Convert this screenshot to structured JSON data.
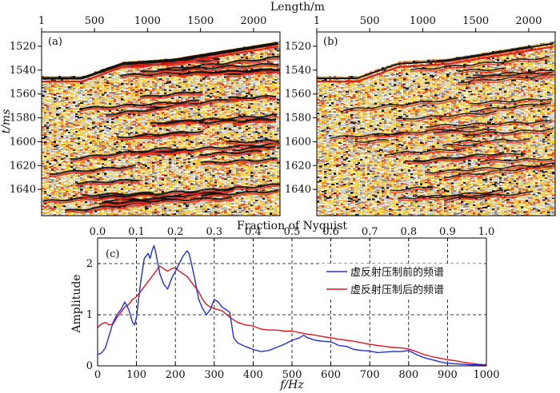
{
  "seismic_panels": {
    "x_axis_title": "Length/m",
    "x_ticks": [
      "1",
      "500",
      "1000",
      "1500",
      "2000"
    ],
    "y_axis_title": "t/ms",
    "y_ticks": [
      "1520",
      "1540",
      "1560",
      "1580",
      "1600",
      "1620",
      "1640"
    ],
    "panel_a_tag": "(a)",
    "panel_b_tag": "(b)"
  },
  "chart_data": {
    "type": "line",
    "panel_tag": "(c)",
    "title": "",
    "xlabel": "f/Hz",
    "ylabel": "Amplitude",
    "top_axis_title": "Fraction of Nyquist",
    "xlim": [
      0,
      1000
    ],
    "ylim": [
      0,
      2.5
    ],
    "x_ticks": [
      "0",
      "100",
      "200",
      "300",
      "400",
      "500",
      "600",
      "700",
      "800",
      "900",
      "1000"
    ],
    "y_ticks": [
      "0",
      "1",
      "2"
    ],
    "top_ticks": [
      "0.0",
      "0.1",
      "0.2",
      "0.3",
      "0.4",
      "0.5",
      "0.6",
      "0.7",
      "0.8",
      "0.9",
      "1.0"
    ],
    "grid": "dashed",
    "legend_position": "top-right",
    "series": [
      {
        "name": "虚反射压制前的频谱",
        "color": "#1f2fd6",
        "x": [
          0,
          10,
          20,
          30,
          40,
          50,
          60,
          70,
          80,
          90,
          95,
          100,
          110,
          120,
          130,
          135,
          140,
          145,
          150,
          160,
          170,
          180,
          190,
          200,
          210,
          220,
          230,
          235,
          240,
          250,
          260,
          270,
          280,
          290,
          300,
          310,
          320,
          330,
          340,
          350,
          360,
          380,
          400,
          420,
          440,
          460,
          480,
          500,
          520,
          530,
          540,
          560,
          580,
          600,
          620,
          640,
          660,
          680,
          700,
          720,
          740,
          760,
          780,
          800,
          820,
          840,
          860,
          880,
          900,
          920,
          940,
          960,
          980,
          1000
        ],
        "values": [
          0.22,
          0.25,
          0.35,
          0.6,
          0.85,
          1.0,
          1.1,
          1.25,
          1.1,
          0.85,
          0.8,
          0.95,
          1.6,
          2.1,
          2.2,
          2.1,
          2.25,
          2.35,
          2.2,
          1.8,
          1.6,
          1.5,
          1.7,
          1.85,
          2.0,
          2.15,
          2.25,
          2.2,
          2.05,
          1.7,
          1.3,
          1.12,
          1.0,
          1.1,
          1.3,
          1.25,
          1.15,
          1.1,
          1.05,
          0.55,
          0.45,
          0.38,
          0.32,
          0.28,
          0.3,
          0.36,
          0.42,
          0.5,
          0.55,
          0.6,
          0.55,
          0.5,
          0.48,
          0.47,
          0.4,
          0.38,
          0.32,
          0.3,
          0.29,
          0.26,
          0.27,
          0.28,
          0.28,
          0.3,
          0.22,
          0.16,
          0.12,
          0.08,
          0.05,
          0.04,
          0.03,
          0.02,
          0.02,
          0.01
        ]
      },
      {
        "name": "虚反射压制后的频谱",
        "color": "#e0141c",
        "x": [
          0,
          10,
          20,
          30,
          40,
          50,
          60,
          70,
          80,
          90,
          100,
          110,
          120,
          130,
          140,
          150,
          160,
          170,
          180,
          190,
          200,
          210,
          220,
          230,
          240,
          250,
          260,
          270,
          280,
          290,
          300,
          320,
          340,
          360,
          380,
          400,
          420,
          440,
          460,
          480,
          500,
          520,
          540,
          560,
          580,
          600,
          620,
          640,
          660,
          680,
          700,
          720,
          740,
          760,
          780,
          800,
          820,
          840,
          860,
          880,
          900,
          920,
          940,
          960,
          980,
          1000
        ],
        "values": [
          0.75,
          0.82,
          0.85,
          0.8,
          0.82,
          0.95,
          1.05,
          1.15,
          1.2,
          1.3,
          1.35,
          1.45,
          1.55,
          1.65,
          1.75,
          1.85,
          1.95,
          1.9,
          1.85,
          1.9,
          1.92,
          1.85,
          1.8,
          1.75,
          1.65,
          1.55,
          1.45,
          1.3,
          1.2,
          1.15,
          1.12,
          1.08,
          0.95,
          0.85,
          0.8,
          0.78,
          0.72,
          0.7,
          0.7,
          0.68,
          0.68,
          0.65,
          0.62,
          0.6,
          0.57,
          0.55,
          0.52,
          0.5,
          0.48,
          0.45,
          0.42,
          0.4,
          0.38,
          0.36,
          0.35,
          0.33,
          0.28,
          0.22,
          0.18,
          0.15,
          0.12,
          0.1,
          0.07,
          0.05,
          0.03,
          0.02
        ]
      }
    ]
  }
}
